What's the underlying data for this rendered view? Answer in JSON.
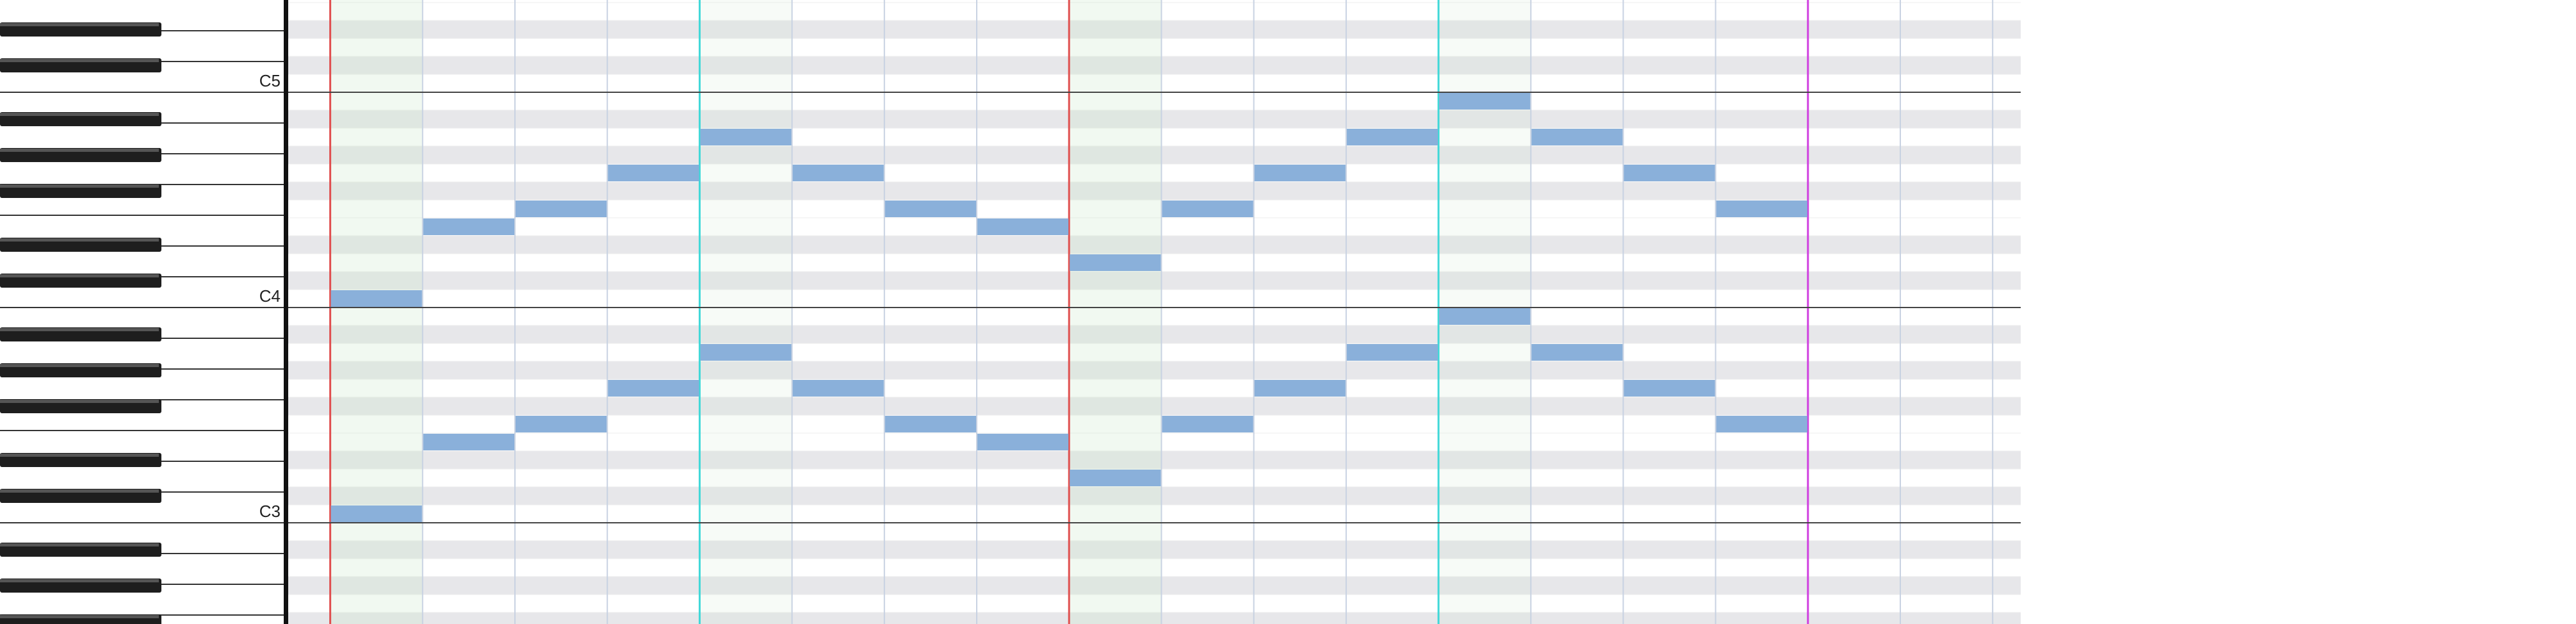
{
  "keyboard": {
    "octave_labels": [
      "C5",
      "C4",
      "C3"
    ]
  }
}
